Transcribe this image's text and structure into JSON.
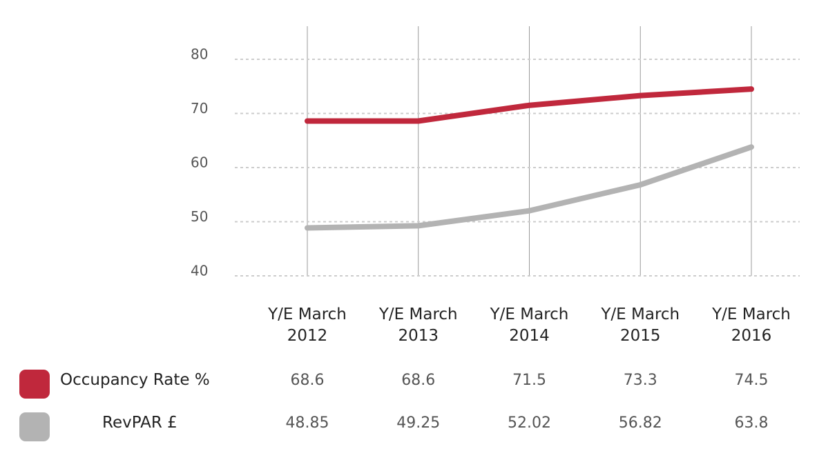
{
  "chart_data": {
    "type": "line",
    "categories": [
      "Y/E March 2012",
      "Y/E March 2013",
      "Y/E March 2014",
      "Y/E March 2015",
      "Y/E March 2016"
    ],
    "series": [
      {
        "name": "Occupancy Rate %",
        "color": "#c0283c",
        "values": [
          68.6,
          68.6,
          71.5,
          73.3,
          74.5
        ]
      },
      {
        "name": "RevPAR £",
        "color": "#b3b3b3",
        "values": [
          48.85,
          49.25,
          52.02,
          56.82,
          63.8
        ]
      }
    ],
    "ylim": [
      40,
      80
    ],
    "yticks": [
      40,
      50,
      60,
      70,
      80
    ],
    "grid": true
  }
}
